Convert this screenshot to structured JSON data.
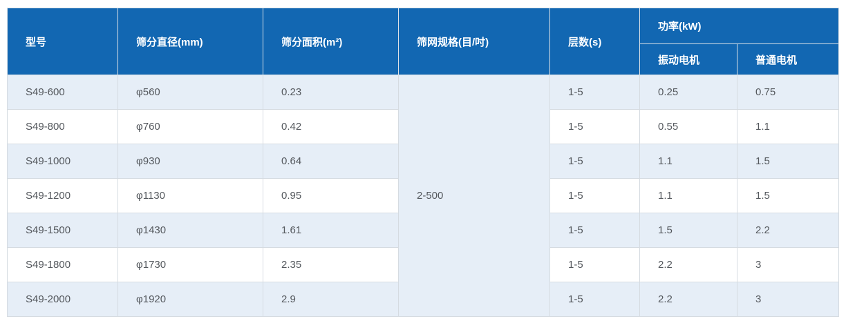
{
  "colors": {
    "header_bg": "#1267b2",
    "header_text": "#ffffff",
    "row_alt_bg": "#e6eef7",
    "row_bg": "#ffffff",
    "border": "#d5dbe1",
    "cell_text": "#54585d"
  },
  "table": {
    "headers": {
      "model": "型号",
      "diameter": "筛分直径(mm)",
      "area": "筛分面积(m²)",
      "mesh": "筛网规格(目/吋)",
      "layers": "层数(s)",
      "power": "功率(kW)",
      "vibration_motor": "振动电机",
      "ordinary_motor": "普通电机"
    },
    "mesh_spec_merged": "2-500",
    "rows": [
      {
        "model": "S49-600",
        "diameter": "φ560",
        "area": "0.23",
        "layers": "1-5",
        "vibration_motor": "0.25",
        "ordinary_motor": "0.75"
      },
      {
        "model": "S49-800",
        "diameter": "φ760",
        "area": "0.42",
        "layers": "1-5",
        "vibration_motor": "0.55",
        "ordinary_motor": "1.1"
      },
      {
        "model": "S49-1000",
        "diameter": "φ930",
        "area": "0.64",
        "layers": "1-5",
        "vibration_motor": "1.1",
        "ordinary_motor": "1.5"
      },
      {
        "model": "S49-1200",
        "diameter": "φ1130",
        "area": "0.95",
        "layers": "1-5",
        "vibration_motor": "1.1",
        "ordinary_motor": "1.5"
      },
      {
        "model": "S49-1500",
        "diameter": "φ1430",
        "area": "1.61",
        "layers": "1-5",
        "vibration_motor": "1.5",
        "ordinary_motor": "2.2"
      },
      {
        "model": "S49-1800",
        "diameter": "φ1730",
        "area": "2.35",
        "layers": "1-5",
        "vibration_motor": "2.2",
        "ordinary_motor": "3"
      },
      {
        "model": "S49-2000",
        "diameter": "φ1920",
        "area": "2.9",
        "layers": "1-5",
        "vibration_motor": "2.2",
        "ordinary_motor": "3"
      }
    ]
  },
  "chart_data": {
    "type": "table",
    "title": "",
    "columns": [
      "型号",
      "筛分直径(mm)",
      "筛分面积(m²)",
      "筛网规格(目/吋)",
      "层数(s)",
      "功率(kW) 振动电机",
      "功率(kW) 普通电机"
    ],
    "rows": [
      [
        "S49-600",
        "φ560",
        "0.23",
        "2-500",
        "1-5",
        "0.25",
        "0.75"
      ],
      [
        "S49-800",
        "φ760",
        "0.42",
        "2-500",
        "1-5",
        "0.55",
        "1.1"
      ],
      [
        "S49-1000",
        "φ930",
        "0.64",
        "2-500",
        "1-5",
        "1.1",
        "1.5"
      ],
      [
        "S49-1200",
        "φ1130",
        "0.95",
        "2-500",
        "1-5",
        "1.1",
        "1.5"
      ],
      [
        "S49-1500",
        "φ1430",
        "1.61",
        "2-500",
        "1-5",
        "1.5",
        "2.2"
      ],
      [
        "S49-1800",
        "φ1730",
        "2.35",
        "2-500",
        "1-5",
        "2.2",
        "3"
      ],
      [
        "S49-2000",
        "φ1920",
        "2.9",
        "2-500",
        "1-5",
        "2.2",
        "3"
      ]
    ],
    "notes": "筛网规格(目/吋) column is a single merged cell (2-500) spanning all 7 rows; rows alternate light blue (#e6eef7) and white."
  }
}
